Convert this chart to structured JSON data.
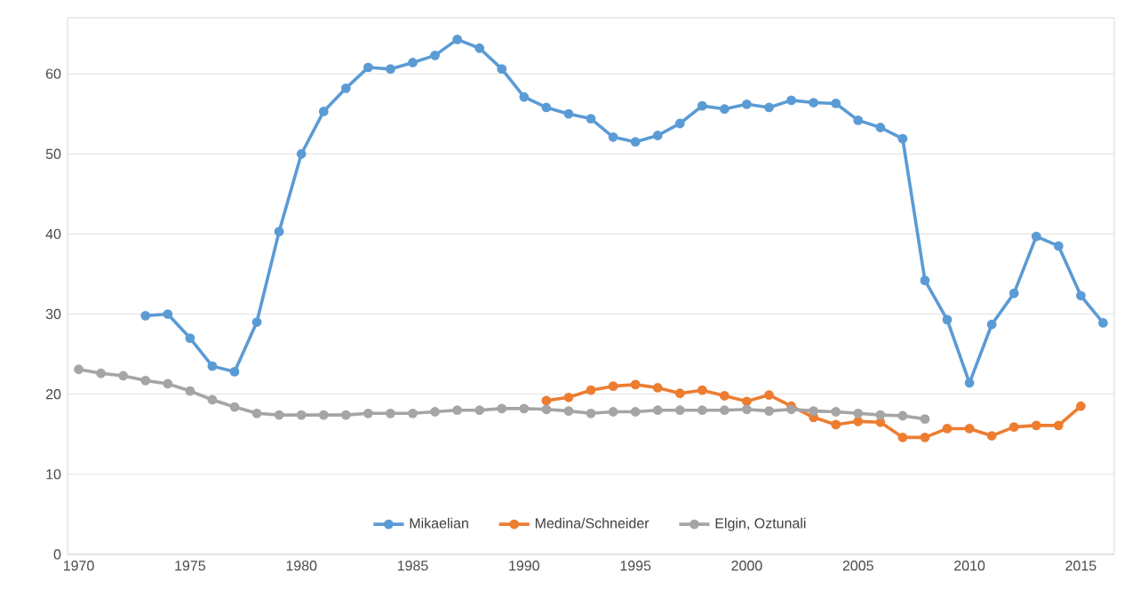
{
  "chart_data": {
    "type": "line",
    "marker": "circle",
    "grid": "y",
    "legend": "bottom",
    "xlim": [
      1969.5,
      2016.5
    ],
    "ylim": [
      0,
      67
    ],
    "xticks": [
      1970,
      1975,
      1980,
      1985,
      1990,
      1995,
      2000,
      2005,
      2010,
      2015
    ],
    "yticks": [
      0,
      10,
      20,
      30,
      40,
      50,
      60
    ],
    "series": [
      {
        "name": "Mikaelian",
        "color": "#5b9bd5",
        "x": [
          1973,
          1974,
          1975,
          1976,
          1977,
          1978,
          1979,
          1980,
          1981,
          1982,
          1983,
          1984,
          1985,
          1986,
          1987,
          1988,
          1989,
          1990,
          1991,
          1992,
          1993,
          1994,
          1995,
          1996,
          1997,
          1998,
          1999,
          2000,
          2001,
          2002,
          2003,
          2004,
          2005,
          2006,
          2007,
          2008,
          2009,
          2010,
          2011,
          2012,
          2013,
          2014,
          2015,
          2016
        ],
        "values": [
          29.8,
          30,
          27,
          23.5,
          22.8,
          29,
          40.3,
          50,
          55.3,
          58.2,
          60.8,
          60.6,
          61.4,
          62.3,
          64.3,
          63.2,
          60.6,
          57.1,
          55.8,
          55,
          54.4,
          52.1,
          51.5,
          52.3,
          53.8,
          56,
          55.6,
          56.2,
          55.8,
          56.7,
          56.4,
          56.3,
          54.2,
          53.3,
          51.9,
          34.2,
          29.3,
          21.4,
          28.7,
          32.6,
          39.7,
          38.5,
          32.3,
          28.9
        ]
      },
      {
        "name": "Medina/Schneider",
        "color": "#ed7d31",
        "x": [
          1991,
          1992,
          1993,
          1994,
          1995,
          1996,
          1997,
          1998,
          1999,
          2000,
          2001,
          2002,
          2003,
          2004,
          2005,
          2006,
          2007,
          2008,
          2009,
          2010,
          2011,
          2012,
          2013,
          2014,
          2015
        ],
        "values": [
          19.2,
          19.6,
          20.5,
          21,
          21.2,
          20.8,
          20.1,
          20.5,
          19.8,
          19.1,
          19.9,
          18.5,
          17.1,
          16.2,
          16.6,
          16.5,
          14.6,
          14.6,
          15.7,
          15.7,
          14.8,
          15.9,
          16.1,
          16.1,
          18.5
        ]
      },
      {
        "name": "Elgin, Oztunali",
        "color": "#a5a5a5",
        "x": [
          1970,
          1971,
          1972,
          1973,
          1974,
          1975,
          1976,
          1977,
          1978,
          1979,
          1980,
          1981,
          1982,
          1983,
          1984,
          1985,
          1986,
          1987,
          1988,
          1989,
          1990,
          1991,
          1992,
          1993,
          1994,
          1995,
          1996,
          1997,
          1998,
          1999,
          2000,
          2001,
          2002,
          2003,
          2004,
          2005,
          2006,
          2007,
          2008
        ],
        "values": [
          23.1,
          22.6,
          22.3,
          21.7,
          21.3,
          20.4,
          19.3,
          18.4,
          17.6,
          17.4,
          17.4,
          17.4,
          17.4,
          17.6,
          17.6,
          17.6,
          17.8,
          18,
          18,
          18.2,
          18.2,
          18.1,
          17.9,
          17.6,
          17.8,
          17.8,
          18,
          18,
          18,
          18,
          18.1,
          17.9,
          18.1,
          17.9,
          17.8,
          17.6,
          17.4,
          17.3,
          16.9
        ]
      }
    ]
  }
}
